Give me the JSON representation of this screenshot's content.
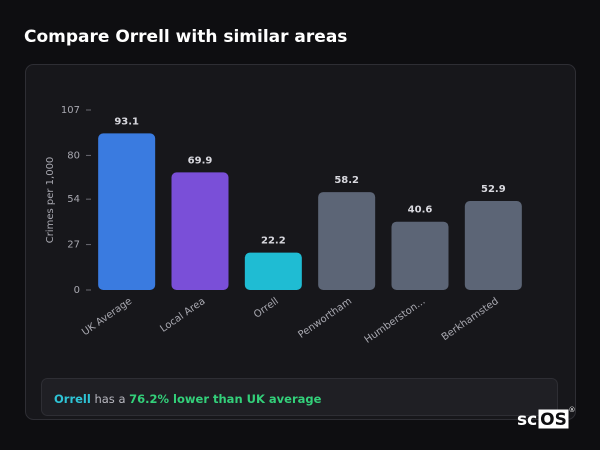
{
  "header": {
    "title": "Compare Orrell with similar areas"
  },
  "chart_data": {
    "type": "bar",
    "ylabel": "Crimes per 1,000",
    "categories": [
      "UK Average",
      "Local Area",
      "Orrell",
      "Penwortham",
      "Humberston...",
      "Berkhamsted"
    ],
    "values": [
      93.1,
      69.9,
      22.2,
      58.2,
      40.6,
      52.9
    ],
    "colors": [
      "#3a7be0",
      "#7a4fd8",
      "#1fbcd3",
      "#5c6576",
      "#5c6576",
      "#5c6576"
    ],
    "ylim": [
      0,
      107
    ],
    "yticks": [
      0,
      27,
      54,
      80,
      107
    ],
    "grid": false
  },
  "footer": {
    "area": "Orrell",
    "text": "has a",
    "highlight": "76.2% lower than UK average"
  },
  "logo": {
    "prefix": "sc",
    "boxed": "OS",
    "mark": "®"
  }
}
